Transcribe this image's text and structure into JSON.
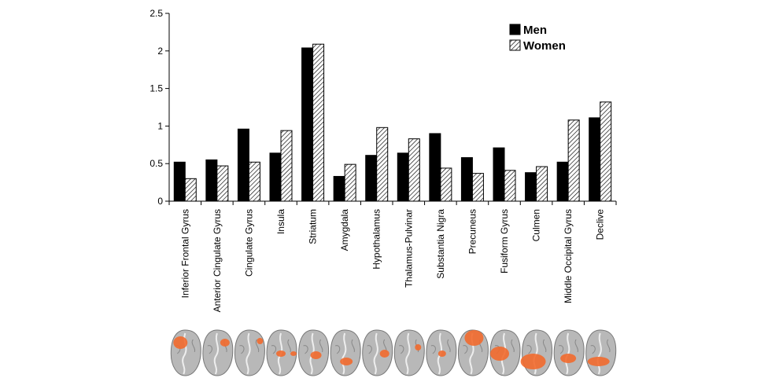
{
  "chart_data": {
    "type": "bar",
    "categories": [
      "Inferior Frontal Gyrus",
      "Anterior Cingulate Gyrus",
      "Cingulate Gyrus",
      "Insula",
      "Striatum",
      "Amygdala",
      "Hypothalamus",
      "Thalamus-Pulvinar",
      "Substantia Nigra",
      "Precuneus",
      "Fusiform Gyrus",
      "Culmen",
      "Middle Occipital Gyrus",
      "Declive"
    ],
    "series": [
      {
        "name": "Men",
        "fill": "solid",
        "values": [
          0.52,
          0.55,
          0.96,
          0.64,
          2.04,
          0.33,
          0.61,
          0.64,
          0.9,
          0.58,
          0.71,
          0.38,
          0.52,
          1.11
        ]
      },
      {
        "name": "Women",
        "fill": "hatched",
        "values": [
          0.3,
          0.47,
          0.52,
          0.94,
          2.09,
          0.49,
          0.98,
          0.83,
          0.44,
          0.37,
          0.41,
          0.46,
          1.08,
          1.32
        ]
      }
    ],
    "y_ticks": [
      "0",
      "0.5",
      "1",
      "1.5",
      "2",
      "2.5"
    ],
    "ylim": [
      0,
      2.5
    ],
    "title": "",
    "xlabel": "",
    "ylabel": "",
    "legend_position": "top-right",
    "grid": false,
    "colors": {
      "men": "#000000",
      "women_hatch": "#000000",
      "highlight": "#f26a2e",
      "brain_gray": "#b8b8b8"
    }
  },
  "brain_thumbnails": {
    "count": 14,
    "highlight_color": "#f26a2e",
    "icon": "brain-slice-icon"
  }
}
